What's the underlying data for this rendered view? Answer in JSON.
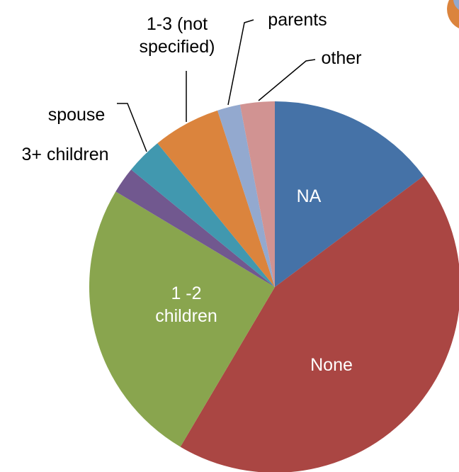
{
  "chart_data": {
    "type": "pie",
    "categories": [
      "NA",
      "None",
      "1 -2 children",
      "3+ children",
      "spouse",
      "1-3 (not specified)",
      "parents",
      "other"
    ],
    "values": [
      14.8,
      43.7,
      25.1,
      2.3,
      3.2,
      5.9,
      2.0,
      3.0
    ],
    "colors": [
      "#4572a7",
      "#aa4643",
      "#89a54e",
      "#71588f",
      "#4198af",
      "#db843d",
      "#93a9cf",
      "#d19392"
    ]
  }
}
